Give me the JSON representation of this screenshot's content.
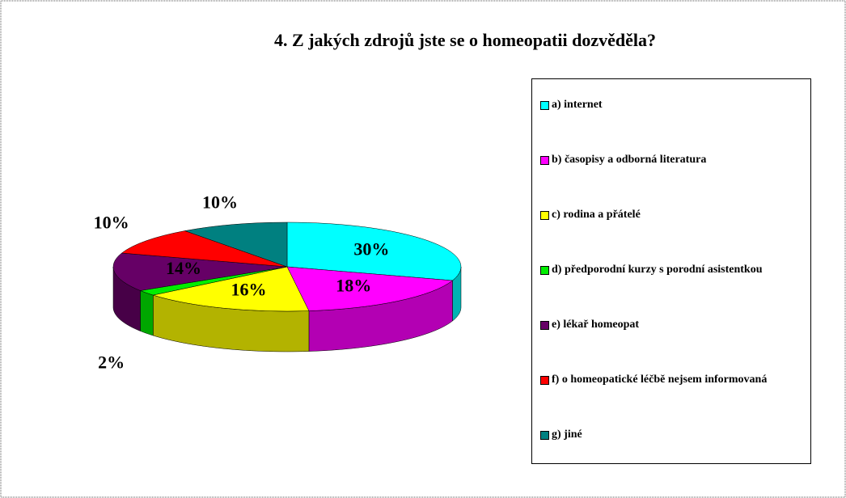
{
  "chart_data": {
    "type": "pie3d",
    "title": "4. Z jakých zdrojů jste se o homeopatii dozvěděla?",
    "categories": [
      "a) internet",
      "b) časopisy a odborná literatura",
      "c) rodina a přátelé",
      "d) předporodní kurzy s porodní asistentkou",
      "e) lékař homeopat",
      "f) o homeopatické léčbě nejsem informovaná",
      "g) jiné"
    ],
    "values": [
      30,
      18,
      16,
      2,
      14,
      10,
      10
    ],
    "value_labels": [
      "30%",
      "18%",
      "16%",
      "2%",
      "14%",
      "10%",
      "10%"
    ],
    "colors": [
      "#00ffff",
      "#ff00ff",
      "#ffff00",
      "#00ee00",
      "#660066",
      "#ff0000",
      "#008080"
    ]
  }
}
